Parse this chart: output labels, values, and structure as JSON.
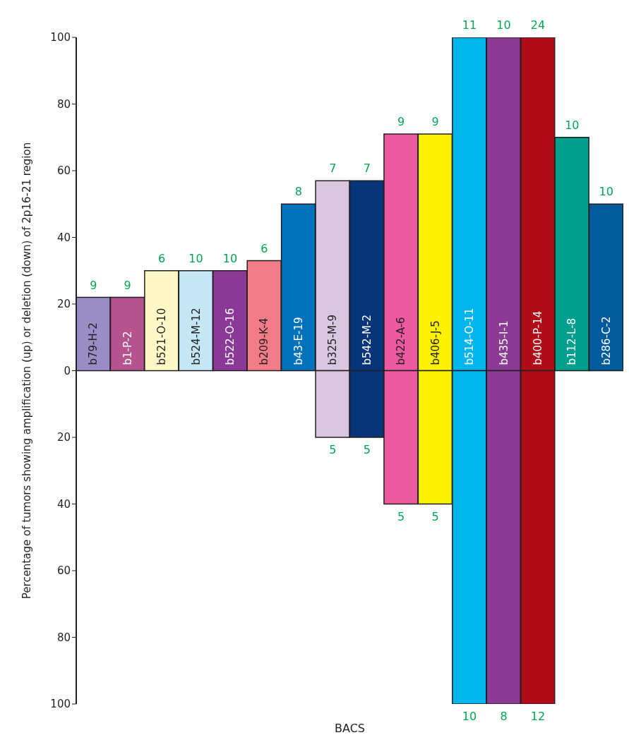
{
  "chart_data": {
    "type": "bar",
    "stacked": true,
    "ylabel": "Percentage of tumors showing amplification (up) or deletion (down) of 2p16-21 region",
    "xlabel": "BACS",
    "categories": [
      "b79-H-2",
      "b1-P-2",
      "b521-O-10",
      "b524-M-12",
      "b522-O-16",
      "b209-K-4",
      "b43-E-19",
      "b325-M-9",
      "b542-M-2",
      "b422-A-6",
      "b406-J-5",
      "b514-O-11",
      "b435-I-1",
      "b400-P-14",
      "b112-L-8",
      "b286-C-2"
    ],
    "series": [
      {
        "colors": [
          "#9a8cc4",
          "#b5538e",
          "#fff9c8",
          "#c5e6f5",
          "#8a3a96",
          "#f27c88",
          "#0072bb",
          "#d9c6e0",
          "#08347a",
          "#ee5a9f",
          "#fff200",
          "#00b5ec",
          "#8b3b94",
          "#b00d18",
          "#009e8d",
          "#005a9c"
        ],
        "values": [
          22,
          22,
          30,
          30,
          30,
          33,
          50,
          57,
          57,
          71,
          71,
          100,
          100,
          100,
          70,
          50
        ]
      },
      {
        "colors": [
          "#9a8cc4",
          "#b5538e",
          "#fff9c8",
          "#c5e6f5",
          "#8a3a96",
          "#f27c88",
          "#0072bb",
          "#d9c6e0",
          "#08347a",
          "#ee5a9f",
          "#fff200",
          "#00b5ec",
          "#8b3b94",
          "#b00d18",
          "#009e8d",
          "#005a9c"
        ],
        "values": [
          null,
          null,
          null,
          null,
          null,
          null,
          null,
          -20,
          -20,
          -40,
          -40,
          -100,
          -100,
          -100,
          null,
          null
        ]
      }
    ],
    "ylim": [
      -100,
      100
    ],
    "yticks": [
      {
        "value": -100,
        "label": "100"
      },
      {
        "value": -80,
        "label": "80"
      },
      {
        "value": -60,
        "label": "60"
      },
      {
        "value": -40,
        "label": "40"
      },
      {
        "value": -20,
        "label": "20"
      },
      0,
      20,
      40,
      60,
      80,
      100
    ],
    "annotations": [
      {
        "text": "9",
        "x": "b79-H-2",
        "y": 22
      },
      {
        "text": "9",
        "x": "b1-P-2",
        "y": 22
      },
      {
        "text": "6",
        "x": "b521-O-10",
        "y": 30
      },
      {
        "text": "10",
        "x": "b524-M-12",
        "y": 30
      },
      {
        "text": "10",
        "x": "b522-O-16",
        "y": 30
      },
      {
        "text": "6",
        "x": "b209-K-4",
        "y": 33
      },
      {
        "text": "8",
        "x": "b43-E-19",
        "y": 50
      },
      {
        "text": "7",
        "x": "b325-M-9",
        "y": 57
      },
      {
        "text": "7",
        "x": "b542-M-2",
        "y": 57
      },
      {
        "text": "9",
        "x": "b422-A-6",
        "y": 71
      },
      {
        "text": "9",
        "x": "b406-J-5",
        "y": 71
      },
      {
        "text": "11",
        "x": "b514-O-11",
        "y": 100
      },
      {
        "text": "10",
        "x": "b435-I-1",
        "y": 100
      },
      {
        "text": "24",
        "x": "b400-P-14",
        "y": 100
      },
      {
        "text": "10",
        "x": "b112-L-8",
        "y": 70
      },
      {
        "text": "10",
        "x": "b286-C-2",
        "y": 50
      },
      {
        "text": "5",
        "x": "b325-M-9",
        "y": -20
      },
      {
        "text": "5",
        "x": "b542-M-2",
        "y": -20
      },
      {
        "text": "5",
        "x": "b422-A-6",
        "y": -40
      },
      {
        "text": "5",
        "x": "b406-J-5",
        "y": -40
      },
      {
        "text": "10",
        "x": "b514-O-11",
        "y": -100
      },
      {
        "text": "8",
        "x": "b435-I-1",
        "y": -100
      },
      {
        "text": "12",
        "x": "b400-P-14",
        "y": -100
      }
    ]
  }
}
